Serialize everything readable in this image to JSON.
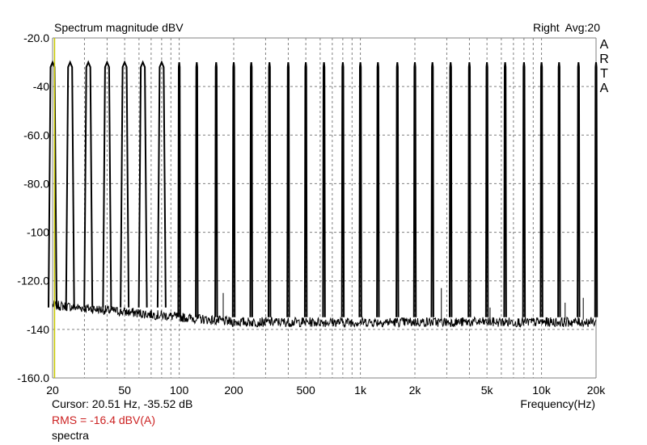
{
  "header": {
    "title": "Spectrum magnitude dBV",
    "channel": "Right",
    "avg": "Avg:20",
    "brand_letters": [
      "A",
      "R",
      "T",
      "A"
    ]
  },
  "footer": {
    "cursor": "Cursor: 20.51 Hz, -35.52 dB",
    "rms": "RMS =  -16.4 dBV(A)",
    "mode": "spectra"
  },
  "colors": {
    "trace": "#000000",
    "grid": "#808080",
    "cursor": "#c8c800",
    "rms": "#cc2222"
  },
  "chart_data": {
    "type": "line",
    "title": "Spectrum magnitude dBV",
    "xlabel": "Frequency(Hz)",
    "ylabel": "",
    "xscale": "log",
    "xlim": [
      20,
      20000
    ],
    "ylim": [
      -160,
      -20
    ],
    "grid": true,
    "x_ticks": [
      20,
      30,
      40,
      50,
      60,
      70,
      80,
      90,
      100,
      200,
      300,
      400,
      500,
      600,
      700,
      800,
      900,
      1000,
      2000,
      3000,
      4000,
      5000,
      6000,
      7000,
      8000,
      9000,
      10000,
      20000
    ],
    "x_tick_labels": [
      {
        "value": 20,
        "label": "20"
      },
      {
        "value": 50,
        "label": "50"
      },
      {
        "value": 100,
        "label": "100"
      },
      {
        "value": 200,
        "label": "200"
      },
      {
        "value": 500,
        "label": "500"
      },
      {
        "value": 1000,
        "label": "1k"
      },
      {
        "value": 2000,
        "label": "2k"
      },
      {
        "value": 5000,
        "label": "5k"
      },
      {
        "value": 10000,
        "label": "10k"
      },
      {
        "value": 20000,
        "label": "20k"
      }
    ],
    "y_ticks": [
      -20,
      -40,
      -60,
      -80,
      -100,
      -120,
      -140,
      -160
    ],
    "y_tick_labels": [
      "-20.0",
      "-40",
      "-60.0",
      "-80.0",
      "-100",
      "-120.0",
      "-140",
      "-160.0"
    ],
    "cursor_x": 20.51,
    "noise_floor_db": -137,
    "peaks_db": -30,
    "tones_hz": [
      20,
      25,
      31.5,
      40,
      50,
      63,
      80,
      100,
      125,
      160,
      200,
      250,
      315,
      400,
      500,
      630,
      800,
      1000,
      1250,
      1600,
      2000,
      2500,
      3150,
      4000,
      5000,
      6300,
      8000,
      10000,
      12500,
      16000,
      20000
    ],
    "spurs": [
      {
        "x": 175,
        "y": -125
      },
      {
        "x": 2800,
        "y": -123
      },
      {
        "x": 5200,
        "y": -131
      },
      {
        "x": 13500,
        "y": -129
      },
      {
        "x": 17000,
        "y": -127
      }
    ]
  }
}
